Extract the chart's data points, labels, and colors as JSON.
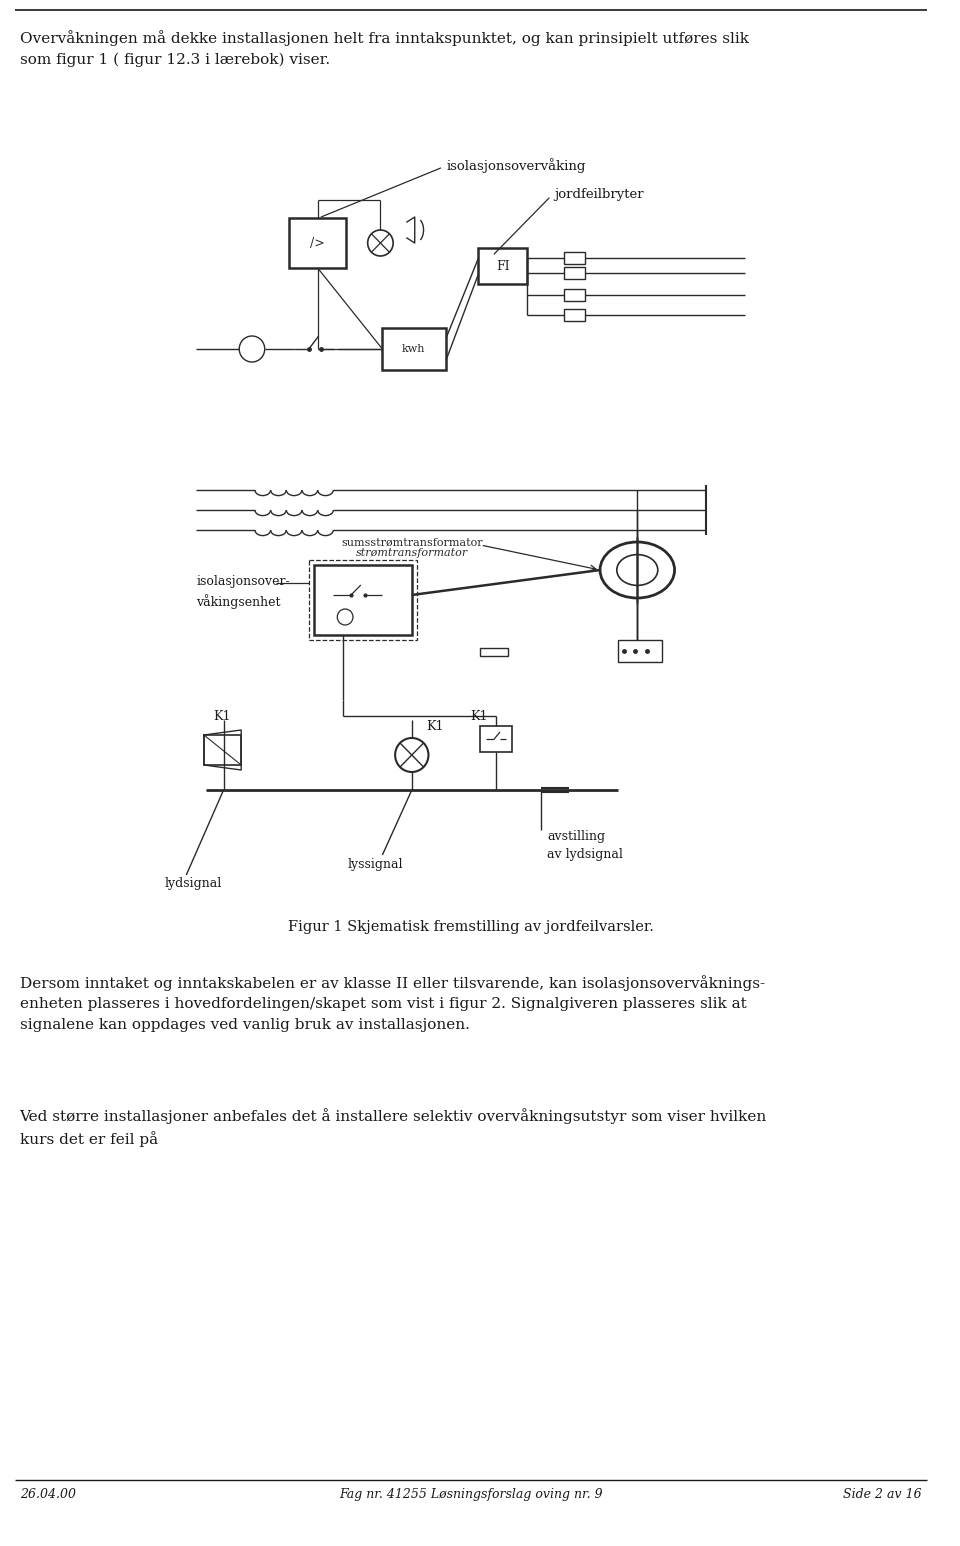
{
  "page_width": 9.6,
  "page_height": 15.46,
  "bg_color": "#ffffff",
  "text_color": "#1a1a1a",
  "diagram_color": "#2a2a2a",
  "para1": "Overvåkningen må dekke installasjonen helt fra inntakspunktet, og kan prinsipielt utføres slik\nsom figur 1 ( figur 12.3 i lærebok) viser.",
  "para2": "Dersom inntaket og inntakskabelen er av klasse II eller tilsvarende, kan isolasjonsovervåknings-\nenheten plasseres i hovedfordelingen/skapet som vist i figur 2. Signalgiveren plasseres slik at\nsignalene kan oppdages ved vanlig bruk av installasjonen.",
  "para3": "Ved større installasjoner anbefales det å installere selektiv overvåkningsutstyr som viser hvilken\nkurs det er feil på",
  "fig_caption": "Figur 1 Skjematisk fremstilling av jordfeilvarsler.",
  "footer_left": "26.04.00",
  "footer_center": "Fag nr. 41255 Løsningsforslag oving nr. 9",
  "footer_right": "Side 2 av 16",
  "label_isolasjon": "isolasjonsovervåking",
  "label_jordfeil": "jordfeilbryter",
  "label_isolasjonenhet": "isolasjonsover-\nvåkingsenhet",
  "label_avstilling": "avstilling\nav lydsignal",
  "label_lyssignal": "lyssignal",
  "label_lydsignal": "lydsignal",
  "label_sumsstr": "sumsstrømtransformator",
  "label_str": "strømtransformator"
}
